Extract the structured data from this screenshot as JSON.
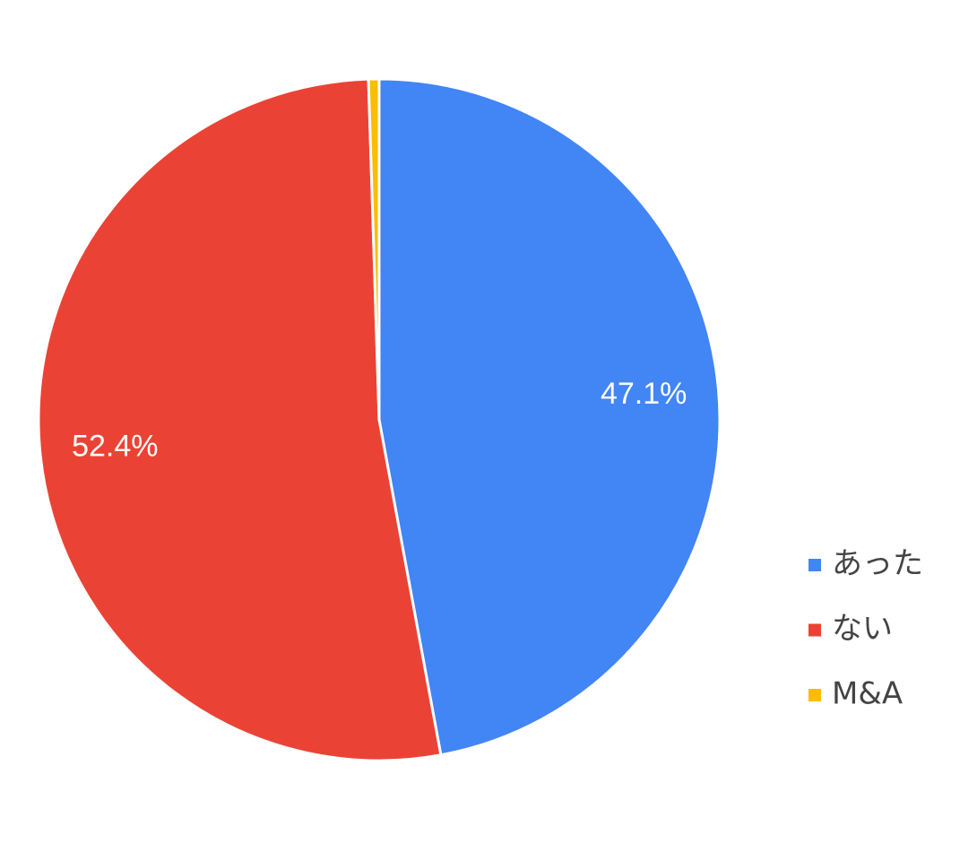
{
  "chart_data": {
    "type": "pie",
    "categories": [
      "あった",
      "ない",
      "M&A"
    ],
    "values": [
      47.1,
      52.4,
      0.5
    ],
    "value_labels": [
      "47.1%",
      "52.4%",
      null
    ],
    "colors": [
      "#4285f4",
      "#ea4335",
      "#fbbc04"
    ],
    "legend": "right"
  }
}
